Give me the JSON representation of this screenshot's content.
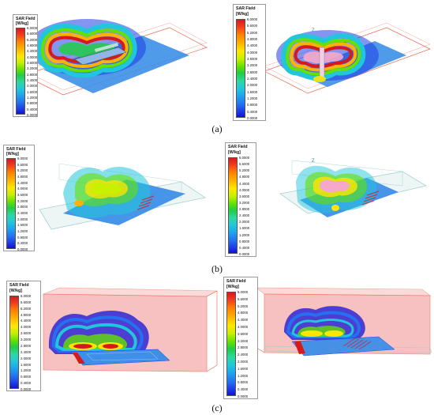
{
  "legend": {
    "title": "SAR Field",
    "unit": "[W/kg]",
    "ticks": [
      "6.0000",
      "5.6000",
      "5.2000",
      "4.8000",
      "4.4000",
      "4.0000",
      "3.6000",
      "3.2000",
      "2.8000",
      "2.4000",
      "2.0000",
      "1.6000",
      "1.2000",
      "0.8000",
      "0.4000",
      "0.0000"
    ]
  },
  "axis_label": "Z",
  "captions": {
    "a": "(a)",
    "b": "(b)",
    "c": "(c)"
  },
  "colors": {
    "red": "#d7191c",
    "orange": "#ff7f00",
    "yellow": "#ffe600",
    "green": "#22cc44",
    "cyan": "#22c6dc",
    "blue": "#1e3ee6",
    "deep_blue": "#1111d6",
    "plate": "#3d8fe8",
    "box_edge": "#e7664d",
    "box_fill": "#f6a8a8",
    "glass_edge": "#9ccfd0"
  }
}
